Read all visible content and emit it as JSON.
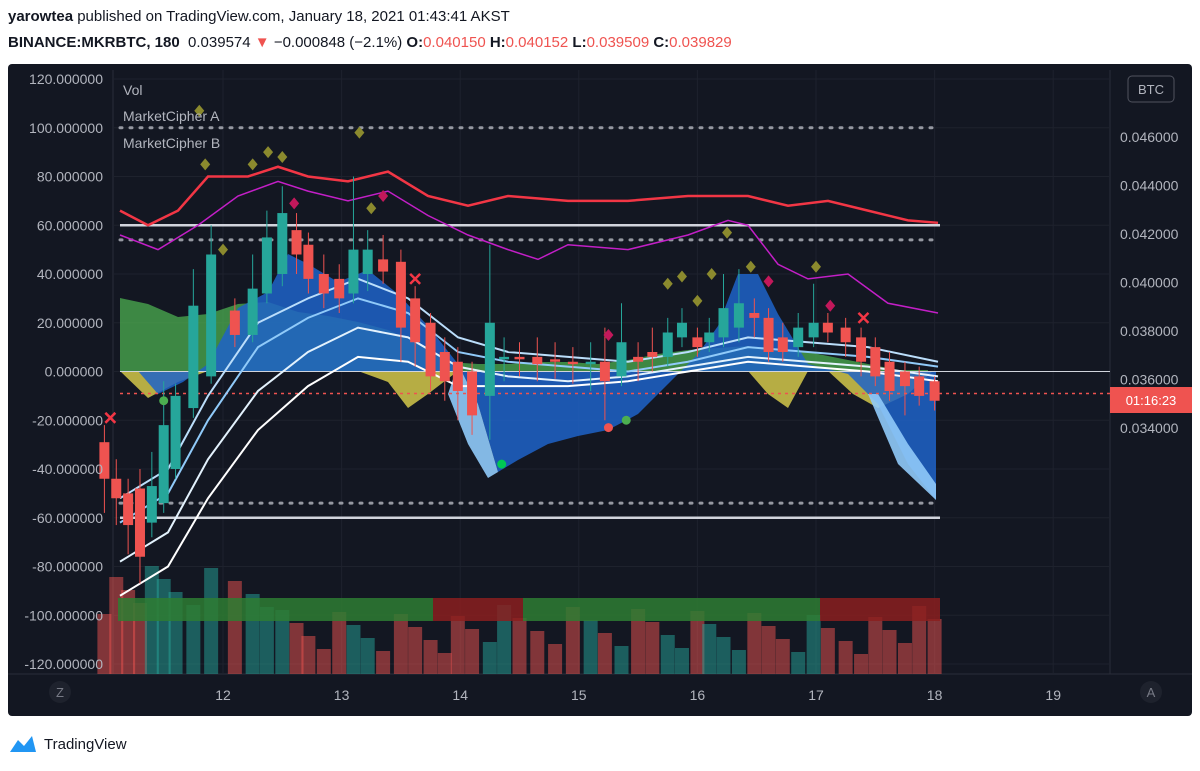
{
  "header": {
    "author": "yarowtea",
    "published_text": "published on TradingView.com, January 18, 2021 01:43:41 AKST",
    "symbol": "BINANCE:MKRBTC, 180",
    "last": "0.039574",
    "change_arrow": "▼",
    "change": "−0.000848 (−2.1%)",
    "o_label": "O:",
    "o": "0.040150",
    "h_label": "H:",
    "h": "0.040152",
    "l_label": "L:",
    "l": "0.039509",
    "c_label": "C:",
    "c": "0.039829"
  },
  "legend": [
    "Vol",
    "MarketCipher A",
    "MarketCipher B"
  ],
  "currency_badge": "BTC",
  "timer_label": "01:16:23",
  "corner_left": "Z",
  "corner_right": "A",
  "footer": {
    "brand": "TradingView"
  },
  "colors": {
    "up": "#26a69a",
    "down": "#ef5350",
    "wave": "#2962ff",
    "background": "#131722"
  },
  "chart_data": {
    "type": "candlestick",
    "left_axis": {
      "ticks": [
        "120.000000",
        "100.000000",
        "80.000000",
        "60.000000",
        "40.000000",
        "20.000000",
        "0.000000",
        "-20.000000",
        "-40.000000",
        "-60.000000",
        "-80.000000",
        "-100.000000",
        "-120.000000"
      ],
      "range": [
        -122,
        122
      ]
    },
    "right_axis": {
      "ticks": [
        "0.046000",
        "0.044000",
        "0.042000",
        "0.040000",
        "0.038000",
        "0.036000",
        "0.034000"
      ],
      "range": [
        0.0335,
        0.0475
      ]
    },
    "x_axis": {
      "ticks": [
        "12",
        "13",
        "14",
        "15",
        "16",
        "17",
        "18",
        "19"
      ]
    },
    "levels": {
      "dotted": [
        100,
        54,
        -54
      ],
      "solid": [
        60,
        -60
      ],
      "zero": 0
    },
    "current_price_line": -9,
    "candles": [
      {
        "x": 11.0,
        "o": -29,
        "c": -44,
        "h": -22,
        "l": -58
      },
      {
        "x": 11.1,
        "o": -44,
        "c": -52,
        "h": -36,
        "l": -63
      },
      {
        "x": 11.2,
        "o": -50,
        "c": -63,
        "h": -44,
        "l": -75
      },
      {
        "x": 11.3,
        "o": -48,
        "c": -76,
        "h": -40,
        "l": -87
      },
      {
        "x": 11.4,
        "o": -62,
        "c": -47,
        "h": -33,
        "l": -68
      },
      {
        "x": 11.5,
        "o": -54,
        "c": -22,
        "h": -4,
        "l": -58
      },
      {
        "x": 11.6,
        "o": -40,
        "c": -10,
        "h": -5,
        "l": -44
      },
      {
        "x": 11.75,
        "o": -15,
        "c": 27,
        "h": 42,
        "l": -19
      },
      {
        "x": 11.9,
        "o": -2,
        "c": 48,
        "h": 60,
        "l": -5
      },
      {
        "x": 12.1,
        "o": 25,
        "c": 15,
        "h": 30,
        "l": 10
      },
      {
        "x": 12.25,
        "o": 15,
        "c": 34,
        "h": 48,
        "l": 12
      },
      {
        "x": 12.37,
        "o": 32,
        "c": 55,
        "h": 66,
        "l": 28
      },
      {
        "x": 12.5,
        "o": 40,
        "c": 65,
        "h": 76,
        "l": 35
      },
      {
        "x": 12.62,
        "o": 58,
        "c": 48,
        "h": 65,
        "l": 40
      },
      {
        "x": 12.72,
        "o": 52,
        "c": 38,
        "h": 57,
        "l": 32
      },
      {
        "x": 12.85,
        "o": 40,
        "c": 32,
        "h": 48,
        "l": 26
      },
      {
        "x": 12.98,
        "o": 38,
        "c": 30,
        "h": 44,
        "l": 24
      },
      {
        "x": 13.1,
        "o": 32,
        "c": 50,
        "h": 80,
        "l": 28
      },
      {
        "x": 13.22,
        "o": 40,
        "c": 50,
        "h": 58,
        "l": 33
      },
      {
        "x": 13.35,
        "o": 46,
        "c": 41,
        "h": 56,
        "l": 36
      },
      {
        "x": 13.5,
        "o": 45,
        "c": 18,
        "h": 50,
        "l": 4
      },
      {
        "x": 13.62,
        "o": 30,
        "c": 12,
        "h": 35,
        "l": 2
      },
      {
        "x": 13.75,
        "o": 20,
        "c": -2,
        "h": 24,
        "l": -8
      },
      {
        "x": 13.87,
        "o": 8,
        "c": -4,
        "h": 14,
        "l": -12
      },
      {
        "x": 13.98,
        "o": 4,
        "c": -8,
        "h": 10,
        "l": -20
      },
      {
        "x": 14.1,
        "o": 0,
        "c": -18,
        "h": 4,
        "l": -26
      },
      {
        "x": 14.25,
        "o": -10,
        "c": 20,
        "h": 52,
        "l": -28
      },
      {
        "x": 14.37,
        "o": 5,
        "c": 6,
        "h": 14,
        "l": -4
      },
      {
        "x": 14.5,
        "o": 6,
        "c": 5,
        "h": 12,
        "l": -2
      },
      {
        "x": 14.65,
        "o": 6,
        "c": 3,
        "h": 14,
        "l": -4
      },
      {
        "x": 14.8,
        "o": 5,
        "c": 4,
        "h": 12,
        "l": -3
      },
      {
        "x": 14.95,
        "o": 4,
        "c": 3,
        "h": 10,
        "l": -5
      },
      {
        "x": 15.1,
        "o": 3,
        "c": 4,
        "h": 12,
        "l": -8
      },
      {
        "x": 15.22,
        "o": 4,
        "c": -4,
        "h": 18,
        "l": -20
      },
      {
        "x": 15.36,
        "o": -2,
        "c": 12,
        "h": 28,
        "l": -6
      },
      {
        "x": 15.5,
        "o": 6,
        "c": 4,
        "h": 12,
        "l": -4
      },
      {
        "x": 15.62,
        "o": 8,
        "c": 6,
        "h": 18,
        "l": 0
      },
      {
        "x": 15.75,
        "o": 6,
        "c": 16,
        "h": 22,
        "l": 2
      },
      {
        "x": 15.87,
        "o": 14,
        "c": 20,
        "h": 26,
        "l": 10
      },
      {
        "x": 16.0,
        "o": 14,
        "c": 10,
        "h": 18,
        "l": 6
      },
      {
        "x": 16.1,
        "o": 12,
        "c": 16,
        "h": 22,
        "l": 8
      },
      {
        "x": 16.22,
        "o": 14,
        "c": 26,
        "h": 40,
        "l": 10
      },
      {
        "x": 16.35,
        "o": 18,
        "c": 28,
        "h": 42,
        "l": 12
      },
      {
        "x": 16.48,
        "o": 24,
        "c": 22,
        "h": 30,
        "l": 14
      },
      {
        "x": 16.6,
        "o": 22,
        "c": 8,
        "h": 26,
        "l": 4
      },
      {
        "x": 16.72,
        "o": 14,
        "c": 8,
        "h": 20,
        "l": 4
      },
      {
        "x": 16.85,
        "o": 10,
        "c": 18,
        "h": 24,
        "l": 6
      },
      {
        "x": 16.98,
        "o": 14,
        "c": 20,
        "h": 36,
        "l": 10
      },
      {
        "x": 17.1,
        "o": 20,
        "c": 16,
        "h": 24,
        "l": 12
      },
      {
        "x": 17.25,
        "o": 18,
        "c": 12,
        "h": 22,
        "l": 6
      },
      {
        "x": 17.38,
        "o": 14,
        "c": 4,
        "h": 18,
        "l": -2
      },
      {
        "x": 17.5,
        "o": 10,
        "c": -2,
        "h": 14,
        "l": -6
      },
      {
        "x": 17.62,
        "o": 4,
        "c": -8,
        "h": 8,
        "l": -12
      },
      {
        "x": 17.75,
        "o": 0,
        "c": -6,
        "h": 4,
        "l": -18
      },
      {
        "x": 17.87,
        "o": -2,
        "c": -10,
        "h": 2,
        "l": -14
      },
      {
        "x": 18.0,
        "o": -4,
        "c": -12,
        "h": -2,
        "l": -16
      }
    ]
  }
}
